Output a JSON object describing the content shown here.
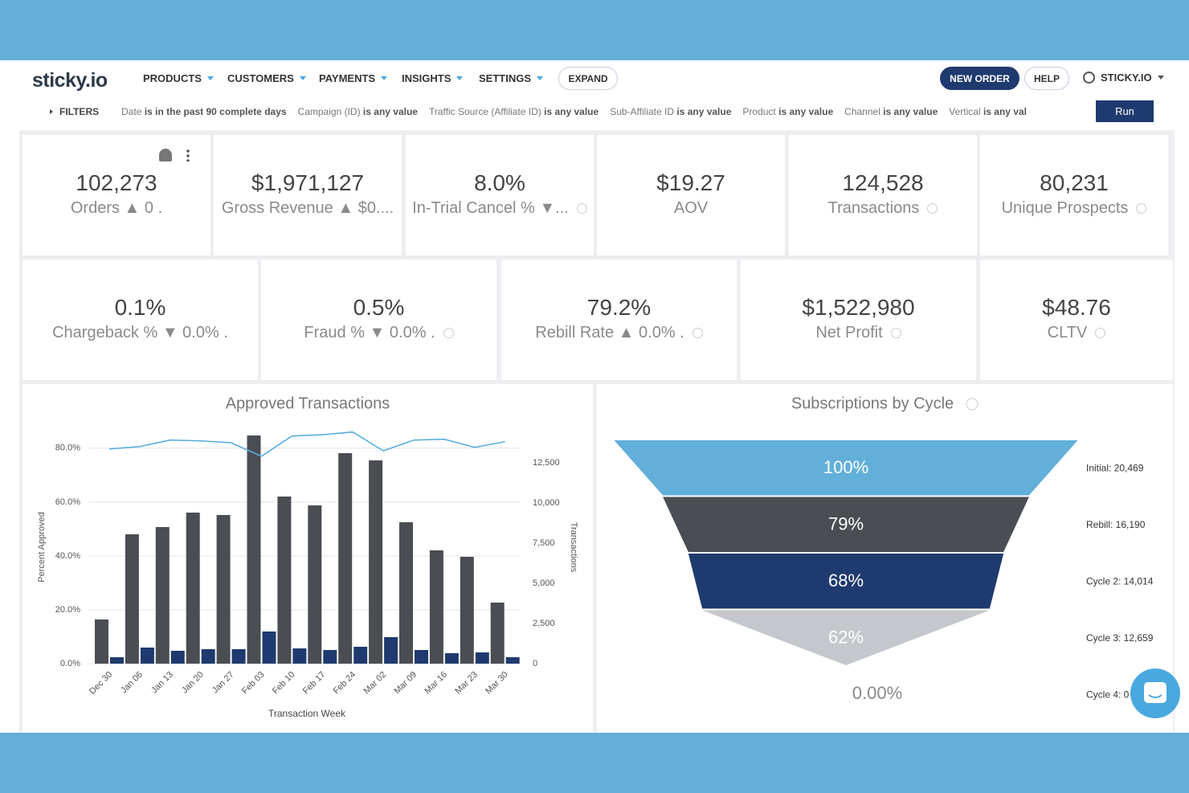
{
  "header": {
    "logo": "sticky.io",
    "nav": [
      "PRODUCTS",
      "CUSTOMERS",
      "PAYMENTS",
      "INSIGHTS",
      "SETTINGS"
    ],
    "expand": "EXPAND",
    "new_order": "NEW ORDER",
    "help": "HELP",
    "account": "STICKY.IO"
  },
  "filters": {
    "label": "FILTERS",
    "items": [
      {
        "field": "Date",
        "condition": "is in the past 90 complete days"
      },
      {
        "field": "Campaign (ID)",
        "condition": "is any value"
      },
      {
        "field": "Traffic Source (Affiliate ID)",
        "condition": "is any value"
      },
      {
        "field": "Sub-Affiliate ID",
        "condition": "is any value"
      },
      {
        "field": "Product",
        "condition": "is any value"
      },
      {
        "field": "Channel",
        "condition": "is any value"
      },
      {
        "field": "Vertical",
        "condition": "is any val"
      }
    ],
    "run": "Run"
  },
  "kpis": {
    "row1": [
      {
        "value": "102,273",
        "label": "Orders ▲ 0 .",
        "info_icon": false
      },
      {
        "value": "$1,971,127",
        "label": "Gross Revenue ▲ $0....",
        "info_icon": false
      },
      {
        "value": "8.0%",
        "label": "In-Trial Cancel % ▼...",
        "info_icon": true
      },
      {
        "value": "$19.27",
        "label": "AOV",
        "info_icon": false
      },
      {
        "value": "124,528",
        "label": "Transactions",
        "info_icon": true
      },
      {
        "value": "80,231",
        "label": "Unique Prospects",
        "info_icon": true
      }
    ],
    "row2": [
      {
        "value": "0.1%",
        "label": "Chargeback % ▼ 0.0% .",
        "info_icon": false
      },
      {
        "value": "0.5%",
        "label": "Fraud % ▼ 0.0% .",
        "info_icon": true
      },
      {
        "value": "79.2%",
        "label": "Rebill Rate ▲ 0.0% .",
        "info_icon": true
      },
      {
        "value": "$1,522,980",
        "label": "Net Profit",
        "info_icon": true
      },
      {
        "value": "$48.76",
        "label": "CLTV",
        "info_icon": true
      }
    ]
  },
  "charts": [
    {
      "type": "bar-line",
      "title": "Approved Transactions",
      "x_label": "Transaction Week",
      "y_label": "Percent Approved",
      "y2_label": "Transactions",
      "categories": [
        "Dec 30",
        "Jan 06",
        "Jan 13",
        "Jan 20",
        "Jan 27",
        "Feb 03",
        "Feb 10",
        "Feb 17",
        "Feb 24",
        "Mar 02",
        "Mar 09",
        "Mar 16",
        "Mar 23",
        "Mar 30"
      ],
      "ylim": [
        0,
        86.5
      ],
      "yticks": [
        {
          "value": 0,
          "label": "0.0%"
        },
        {
          "value": 20,
          "label": "20.0%"
        },
        {
          "value": 40,
          "label": "40.0%"
        },
        {
          "value": 60,
          "label": "60.0%"
        },
        {
          "value": 80,
          "label": "80.0%"
        }
      ],
      "y2lim": [
        0,
        14500
      ],
      "y2ticks": [
        0,
        {
          "value": 2500,
          "label": "2,500"
        },
        {
          "value": 5000,
          "label": "5,000"
        },
        {
          "value": 7500,
          "label": "7,500"
        },
        {
          "value": 10000,
          "label": "10,000"
        },
        {
          "value": 12500,
          "label": "12,500"
        }
      ],
      "grid": true,
      "series": [
        {
          "type": "line",
          "axis": "y",
          "color": "#5aaee0",
          "values": [
            79.7,
            80.6,
            83,
            82.7,
            82,
            77,
            84.5,
            85,
            86,
            79,
            83,
            83.3,
            80.3,
            82.4
          ]
        },
        {
          "type": "bar",
          "axis": "y2",
          "color": "#4a4d52",
          "values": [
            2750,
            8050,
            8500,
            9400,
            9250,
            14200,
            10400,
            9850,
            13100,
            12650,
            8800,
            7050,
            6650,
            3800
          ]
        },
        {
          "type": "bar",
          "axis": "y2",
          "color": "#1f3a6e",
          "values": [
            400,
            1000,
            800,
            900,
            900,
            2000,
            950,
            850,
            1050,
            1650,
            850,
            650,
            700,
            400
          ]
        }
      ]
    },
    {
      "type": "funnel",
      "title": "Subscriptions by Cycle",
      "values": [
        100,
        79,
        68,
        62,
        0
      ],
      "value_labels": [
        "100%",
        "79%",
        "68%",
        "62%",
        "0.00%"
      ],
      "stages": [
        "Initial: 20,469",
        "Rebill: 16,190",
        "Cycle 2: 14,014",
        "Cycle 3: 12,659",
        "Cycle 4: 0"
      ],
      "colors": [
        "#62afd9",
        "#4a4d52",
        "#1f3a6e",
        "#c4c8cc"
      ]
    }
  ]
}
